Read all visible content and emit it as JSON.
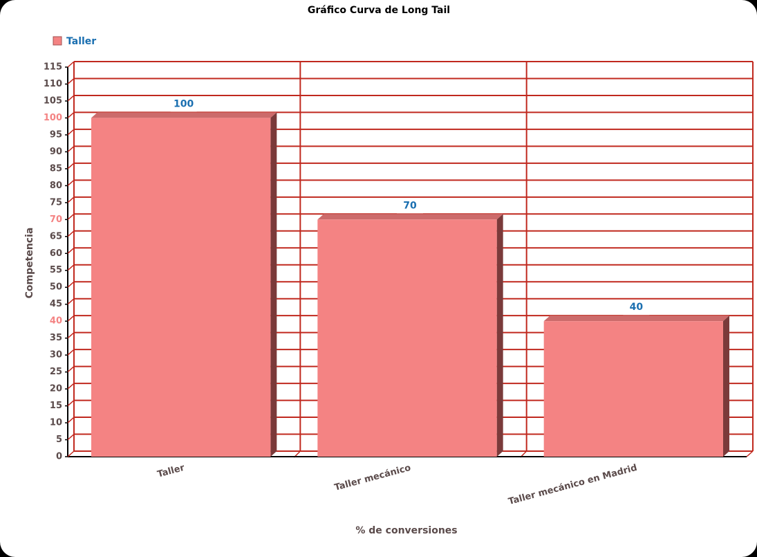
{
  "chart_data": {
    "type": "bar",
    "title": "Gráfico Curva de Long Tail",
    "x_label": "% de conversiones",
    "y_label": "Competencia",
    "categories": [
      "Taller",
      "Taller mecánico",
      "Taller mecánico en Madrid"
    ],
    "series": [
      {
        "name": "Taller",
        "color": "#f48383",
        "values": [
          100,
          70,
          40
        ]
      }
    ],
    "ylim": [
      0,
      115
    ],
    "yticks": [
      0,
      5,
      10,
      15,
      20,
      25,
      30,
      35,
      40,
      45,
      50,
      55,
      60,
      65,
      70,
      75,
      80,
      85,
      90,
      95,
      100,
      105,
      110,
      115
    ],
    "grid": true,
    "legend": "top-left"
  }
}
